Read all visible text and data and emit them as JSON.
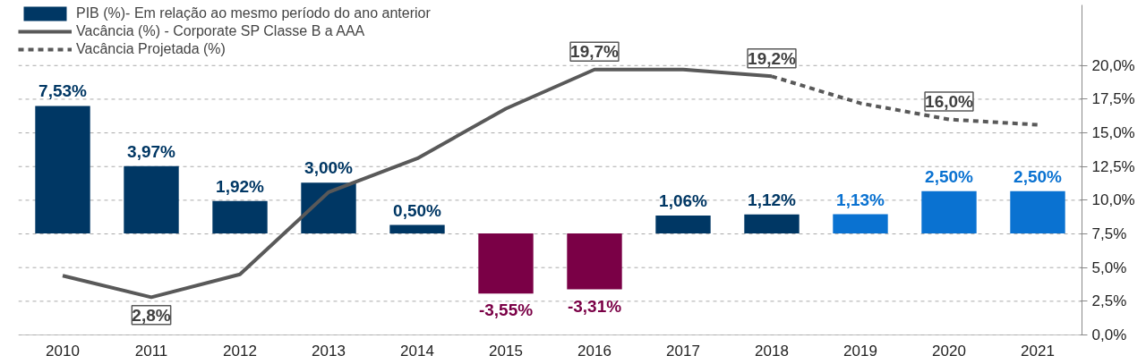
{
  "chart_data": {
    "type": "bar",
    "categories": [
      "2010",
      "2011",
      "2012",
      "2013",
      "2014",
      "2015",
      "2016",
      "2017",
      "2018",
      "2019",
      "2020",
      "2021"
    ],
    "series": [
      {
        "name": "PIB (%)- Em relação ao mesmo período do ano anterior",
        "colors": [
          "#003764",
          "#003764",
          "#003764",
          "#003764",
          "#003764",
          "#7a0046",
          "#7a0046",
          "#003764",
          "#003764",
          "#0a72d1",
          "#0a72d1",
          "#0a72d1"
        ],
        "values": [
          7.53,
          3.97,
          1.92,
          3.0,
          0.5,
          -3.55,
          -3.31,
          1.06,
          1.12,
          1.13,
          2.5,
          2.5
        ],
        "value_labels": [
          "7,53%",
          "3,97%",
          "1,92%",
          "3,00%",
          "0,50%",
          "-3,55%",
          "-3,31%",
          "1,06%",
          "1,12%",
          "1,13%",
          "2,50%",
          "2,50%"
        ]
      },
      {
        "name": "Vacância (%) - Corporate SP Classe B a AAA",
        "type": "line",
        "axis": "y2",
        "color": "#595959",
        "line_style": "solid",
        "values": [
          4.4,
          2.8,
          4.5,
          10.6,
          13.1,
          16.8,
          19.7,
          19.7,
          19.2,
          null,
          null,
          null
        ],
        "value_labels": [
          null,
          "2,8%",
          null,
          null,
          null,
          null,
          "19,7%",
          null,
          null,
          null,
          null,
          null
        ]
      },
      {
        "name": "Vacância Projetada (%)",
        "type": "line",
        "axis": "y2",
        "color": "#595959",
        "line_style": "dashed",
        "values": [
          null,
          null,
          null,
          null,
          null,
          null,
          null,
          null,
          19.2,
          17.2,
          16.0,
          15.6
        ],
        "value_labels": [
          null,
          null,
          null,
          null,
          null,
          null,
          null,
          null,
          "19,2%",
          null,
          "16,0%",
          null
        ]
      }
    ],
    "ylim": [
      -6,
      13.5
    ],
    "y2lim": [
      0,
      24.5
    ],
    "y2ticks": [
      {
        "value": 0,
        "label": "0,0%"
      },
      {
        "value": 2.5,
        "label": "2,5%"
      },
      {
        "value": 5,
        "label": "5,0%"
      },
      {
        "value": 7.5,
        "label": "7,5%"
      },
      {
        "value": 10,
        "label": "10,0%"
      },
      {
        "value": 12.5,
        "label": "12,5%"
      },
      {
        "value": 15,
        "label": "15,0%"
      },
      {
        "value": 17.5,
        "label": "17,5%"
      },
      {
        "value": 20,
        "label": "20,0%"
      }
    ],
    "tick_labels": "x",
    "grid": "y2",
    "legend": "top left"
  }
}
